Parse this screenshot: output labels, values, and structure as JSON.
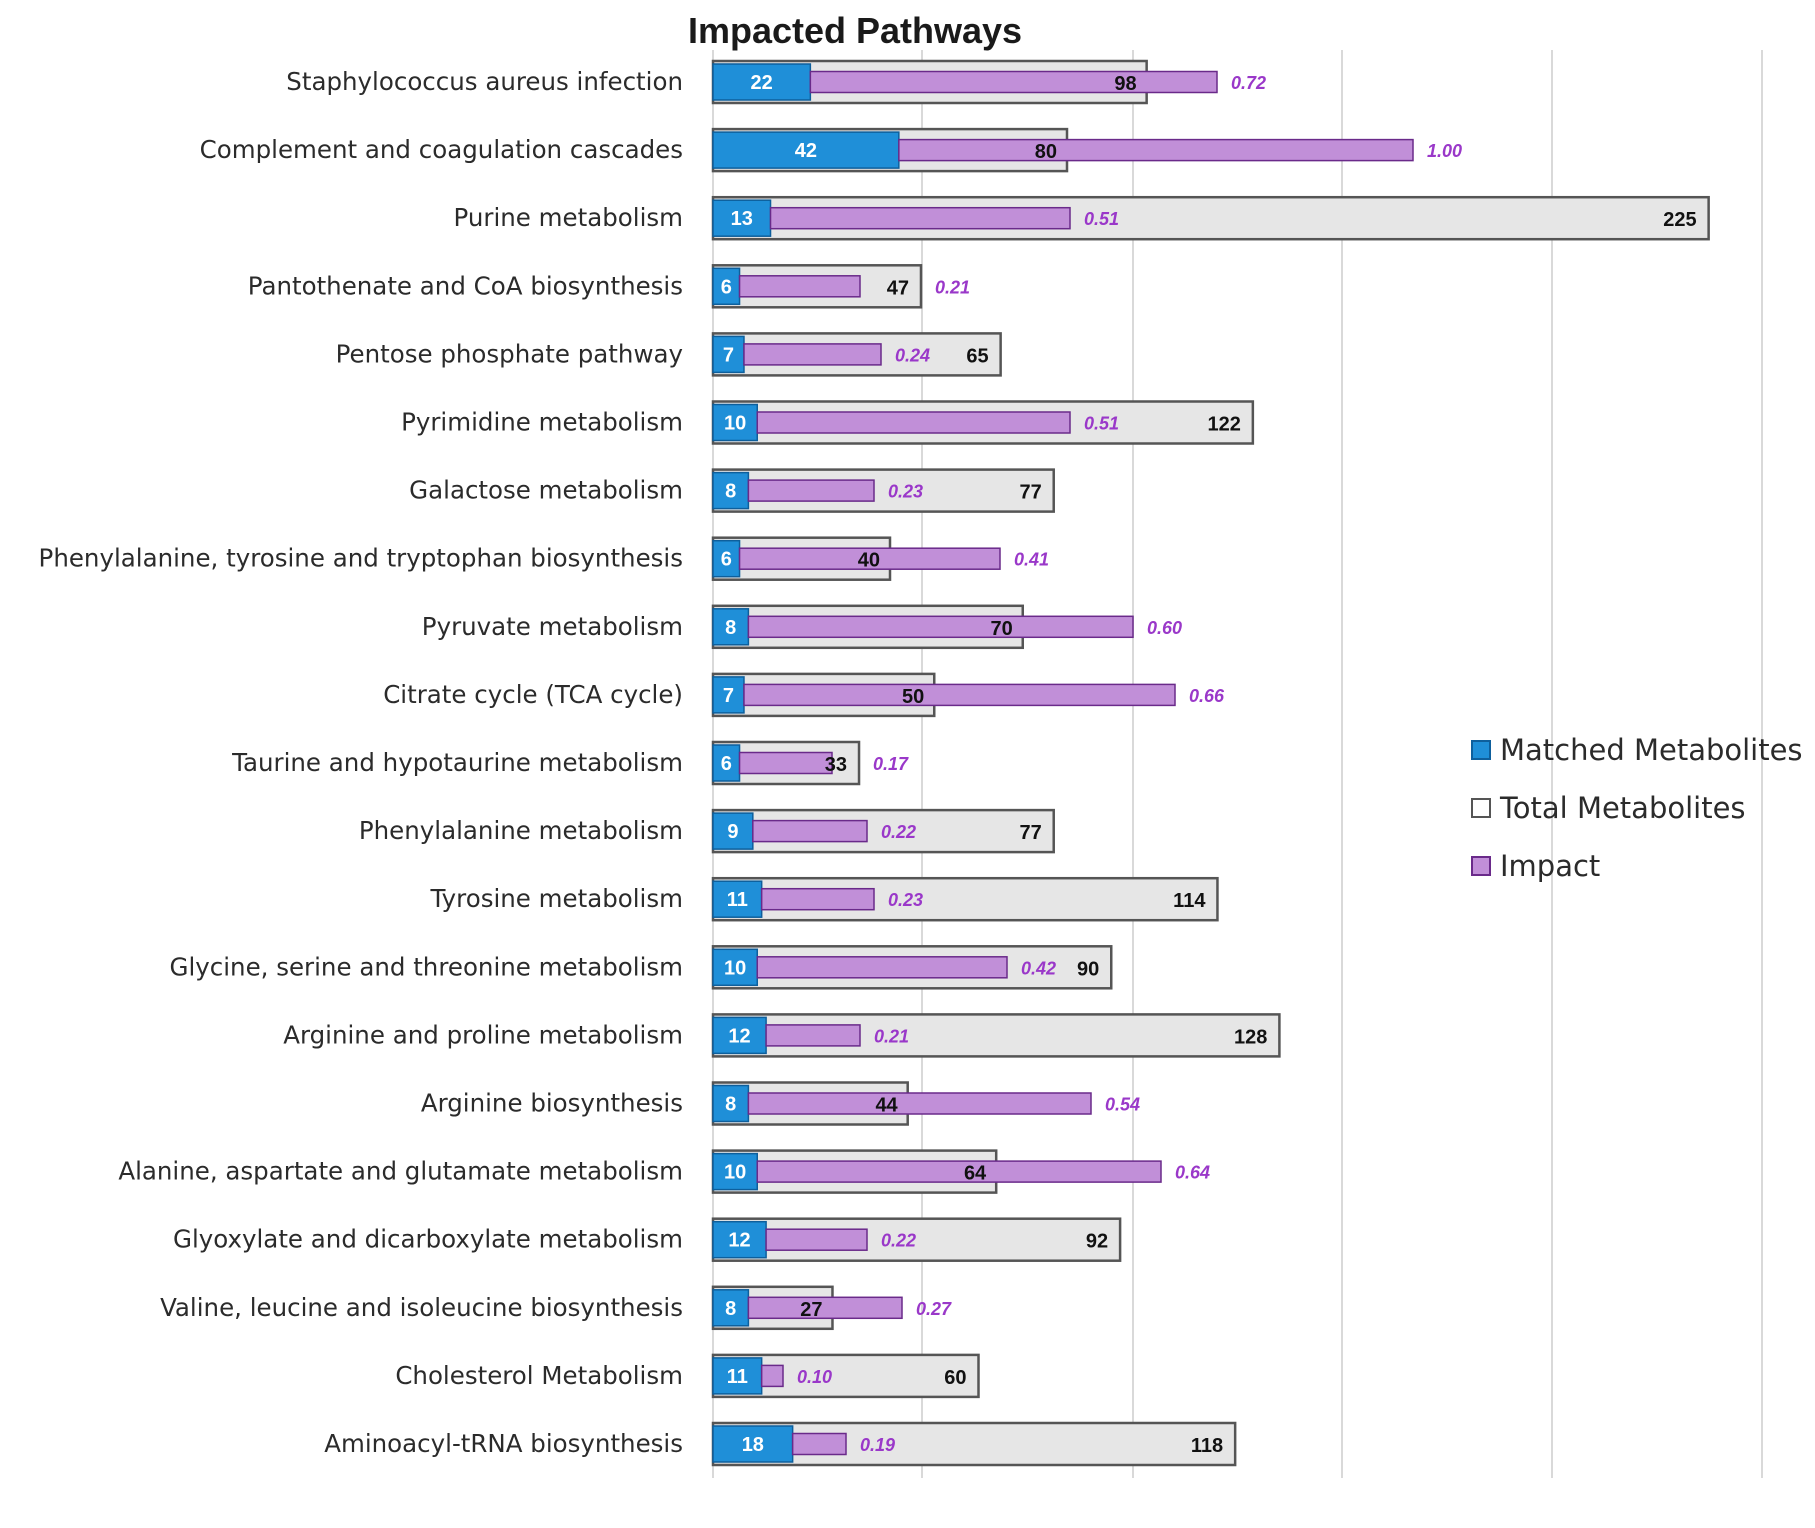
{
  "chart_data": {
    "type": "bar",
    "orientation": "horizontal",
    "title": "Impacted Pathways",
    "grid": "vertical",
    "legend_position": "right",
    "categories": [
      "Staphylococcus aureus infection",
      "Complement and coagulation cascades",
      "Purine metabolism",
      "Pantothenate and CoA biosynthesis",
      "Pentose phosphate pathway",
      "Pyrimidine metabolism",
      "Galactose metabolism",
      "Phenylalanine, tyrosine and tryptophan biosynthesis",
      "Pyruvate metabolism",
      "Citrate cycle (TCA cycle)",
      "Taurine and hypotaurine metabolism",
      "Phenylalanine metabolism",
      "Tyrosine metabolism",
      "Glycine, serine and threonine metabolism",
      "Arginine and proline metabolism",
      "Arginine biosynthesis",
      "Alanine, aspartate and glutamate metabolism",
      "Glyoxylate and dicarboxylate metabolism",
      "Valine, leucine and isoleucine biosynthesis",
      "Cholesterol Metabolism",
      "Aminoacyl-tRNA biosynthesis"
    ],
    "series": [
      {
        "name": "Matched Metabolites",
        "color": "#1f8fd8",
        "values": [
          22,
          42,
          13,
          6,
          7,
          10,
          8,
          6,
          8,
          7,
          6,
          9,
          11,
          10,
          12,
          8,
          10,
          12,
          8,
          11,
          18
        ]
      },
      {
        "name": "Total Metabolites",
        "color": "#e6e6e6",
        "values": [
          98,
          80,
          225,
          47,
          65,
          122,
          77,
          40,
          70,
          50,
          33,
          77,
          114,
          90,
          128,
          44,
          64,
          92,
          27,
          60,
          118
        ]
      },
      {
        "name": "Impact",
        "color": "#c18fd8",
        "values": [
          "0.72",
          "1.00",
          "0.51",
          "0.21",
          "0.24",
          "0.51",
          "0.23",
          "0.41",
          "0.60",
          "0.66",
          "0.17",
          "0.22",
          "0.23",
          "0.42",
          "0.21",
          "0.54",
          "0.64",
          "0.22",
          "0.27",
          "0.10",
          "0.19"
        ]
      }
    ]
  }
}
